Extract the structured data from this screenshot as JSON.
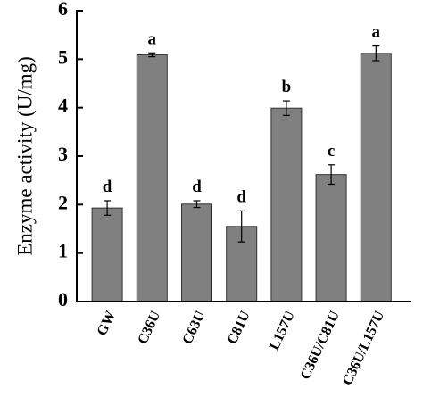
{
  "chart_data": {
    "type": "bar",
    "y_label": "Enzyme activity (U/mg)",
    "categories": [
      "GW",
      "C36U",
      "C63U",
      "C81U",
      "L157U",
      "C36U/C81U",
      "C36U/L157U"
    ],
    "series": [
      {
        "values": [
          1.93,
          5.09,
          2.01,
          1.55,
          3.99,
          2.62,
          5.12
        ],
        "errors": [
          0.15,
          0.04,
          0.07,
          0.32,
          0.15,
          0.2,
          0.15
        ],
        "color": "#808080"
      }
    ],
    "annotations": [
      "d",
      "a",
      "d",
      "d",
      "b",
      "c",
      "a"
    ],
    "ylim": [
      0,
      6
    ],
    "yticks": [
      0,
      1,
      2,
      3,
      4,
      5,
      6
    ]
  }
}
